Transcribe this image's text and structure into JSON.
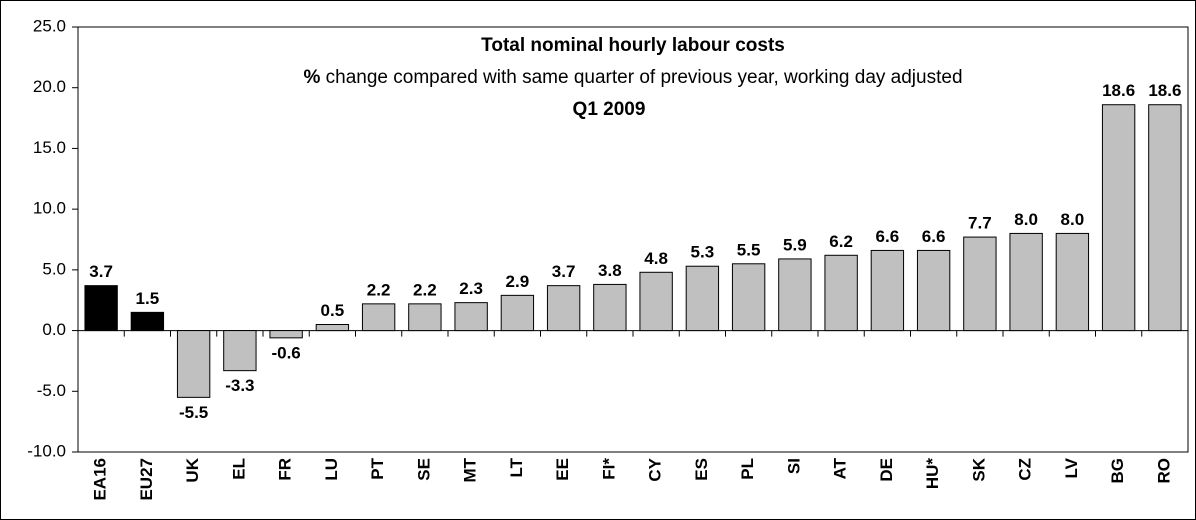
{
  "chart_data": {
    "type": "bar",
    "title": "Total nominal hourly labour costs",
    "subtitle_symbol": "%",
    "subtitle": "change compared with same quarter of previous year, working day adjusted",
    "period": "Q1 2009",
    "categories": [
      "EA16",
      "EU27",
      "UK",
      "EL",
      "FR",
      "LU",
      "PT",
      "SE",
      "MT",
      "LT",
      "EE",
      "FI*",
      "CY",
      "ES",
      "PL",
      "SI",
      "AT",
      "DE",
      "HU*",
      "SK",
      "CZ",
      "LV",
      "BG",
      "RO"
    ],
    "values": [
      3.7,
      1.5,
      -5.5,
      -3.3,
      -0.6,
      0.5,
      2.2,
      2.2,
      2.3,
      2.9,
      3.7,
      3.8,
      4.8,
      5.3,
      5.5,
      5.9,
      6.2,
      6.6,
      6.6,
      7.7,
      8.0,
      8.0,
      18.6,
      18.6
    ],
    "value_labels": [
      "3.7",
      "1.5",
      "-5.5",
      "-3.3",
      "-0.6",
      "0.5",
      "2.2",
      "2.2",
      "2.3",
      "2.9",
      "3.7",
      "3.8",
      "4.8",
      "5.3",
      "5.5",
      "5.9",
      "6.2",
      "6.6",
      "6.6",
      "7.7",
      "8.0",
      "8.0",
      "18.6",
      "18.6"
    ],
    "colors": [
      "#000000",
      "#000000",
      "#c0c0c0",
      "#c0c0c0",
      "#c0c0c0",
      "#c0c0c0",
      "#c0c0c0",
      "#c0c0c0",
      "#c0c0c0",
      "#c0c0c0",
      "#c0c0c0",
      "#c0c0c0",
      "#c0c0c0",
      "#c0c0c0",
      "#c0c0c0",
      "#c0c0c0",
      "#c0c0c0",
      "#c0c0c0",
      "#c0c0c0",
      "#c0c0c0",
      "#c0c0c0",
      "#c0c0c0",
      "#c0c0c0",
      "#c0c0c0"
    ],
    "ylim": [
      -10,
      25
    ],
    "yticks": [
      {
        "value": -10,
        "label": "-10.0"
      },
      {
        "value": -5,
        "label": "-5.0"
      },
      {
        "value": 0,
        "label": "0.0"
      },
      {
        "value": 5,
        "label": "5.0"
      },
      {
        "value": 10,
        "label": "10.0"
      },
      {
        "value": 15,
        "label": "15.0"
      },
      {
        "value": 20,
        "label": "20.0"
      },
      {
        "value": 25,
        "label": "25.0"
      }
    ],
    "grid": false
  }
}
